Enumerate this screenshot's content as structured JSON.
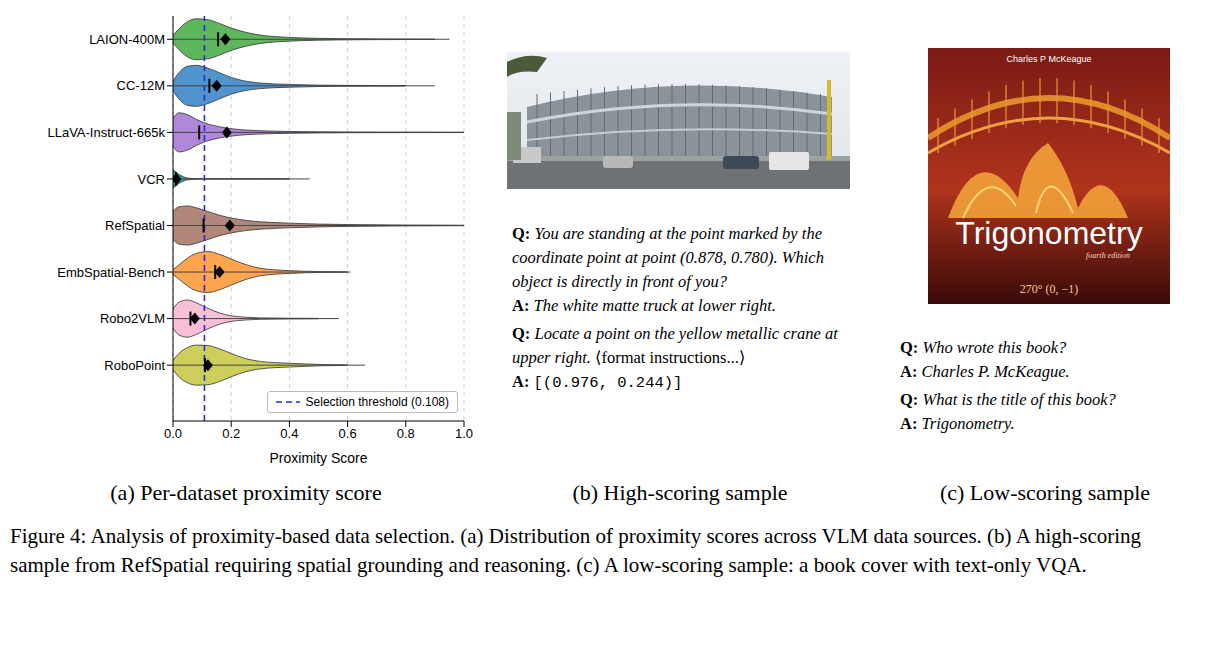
{
  "chart_data": {
    "type": "violin",
    "xlabel": "Proximity Score",
    "xlim": [
      0,
      1
    ],
    "xticks": [
      {
        "value": 0,
        "label": "0.0"
      },
      {
        "value": 0.2,
        "label": "0.2"
      },
      {
        "value": 0.4,
        "label": "0.4"
      },
      {
        "value": 0.6,
        "label": "0.6"
      },
      {
        "value": 0.8,
        "label": "0.8"
      },
      {
        "value": 1,
        "label": "1.0"
      }
    ],
    "grid": true,
    "legend": "lower right",
    "threshold": {
      "value": 0.108,
      "label": "Selection threshold (0.108)",
      "color": "#2a2ad6",
      "line_style": "dashed"
    },
    "density_x": [
      0,
      0.02,
      0.05,
      0.08,
      0.12,
      0.16,
      0.2,
      0.25,
      0.3,
      0.4,
      0.5,
      0.6,
      0.7,
      0.8,
      0.9,
      1.0
    ],
    "series": [
      {
        "name": "LAION-400M",
        "color": "#4daf4a",
        "median": 0.155,
        "mean": 0.18,
        "min": 0,
        "max": 0.95,
        "density": [
          0.08,
          0.22,
          0.38,
          0.44,
          0.42,
          0.34,
          0.24,
          0.15,
          0.09,
          0.04,
          0.02,
          0.012,
          0.008,
          0.005,
          0.003,
          null
        ]
      },
      {
        "name": "CC-12M",
        "color": "#3d88c8",
        "median": 0.125,
        "mean": 0.15,
        "min": 0,
        "max": 0.9,
        "density": [
          0.1,
          0.28,
          0.42,
          0.44,
          0.38,
          0.28,
          0.18,
          0.1,
          0.06,
          0.03,
          0.015,
          0.01,
          0.006,
          0.004,
          null,
          null
        ]
      },
      {
        "name": "LLaVA-Instruct-665k",
        "color": "#a77bd6",
        "median": 0.09,
        "mean": 0.185,
        "min": 0,
        "max": 1.0,
        "density": [
          0.3,
          0.42,
          0.38,
          0.28,
          0.18,
          0.12,
          0.08,
          0.05,
          0.035,
          0.02,
          0.012,
          0.008,
          0.006,
          0.005,
          0.004,
          0.003
        ]
      },
      {
        "name": "VCR",
        "color": "#1a9a96",
        "median": 0.01,
        "mean": 0.012,
        "min": 0,
        "max": 0.47,
        "density": [
          0.2,
          0.1,
          0.02,
          0.006,
          0.003,
          0.002,
          0.002,
          0.002,
          0.002,
          0.001,
          null,
          null,
          null,
          null,
          null,
          null
        ]
      },
      {
        "name": "RefSpatial",
        "color": "#a97a6a",
        "median": 0.105,
        "mean": 0.195,
        "min": 0,
        "max": 1.0,
        "density": [
          0.3,
          0.4,
          0.42,
          0.38,
          0.3,
          0.22,
          0.16,
          0.11,
          0.08,
          0.05,
          0.03,
          0.02,
          0.015,
          0.01,
          0.008,
          0.005
        ]
      },
      {
        "name": "EmbSpatial-Bench",
        "color": "#ff9a3c",
        "median": 0.145,
        "mean": 0.16,
        "min": 0,
        "max": 0.61,
        "density": [
          0.05,
          0.15,
          0.3,
          0.4,
          0.44,
          0.38,
          0.28,
          0.16,
          0.08,
          0.03,
          0.01,
          0.003,
          null,
          null,
          null,
          null
        ]
      },
      {
        "name": "Robo2VLM",
        "color": "#f7b8d4",
        "median": 0.06,
        "mean": 0.075,
        "min": 0,
        "max": 0.57,
        "density": [
          0.2,
          0.35,
          0.4,
          0.34,
          0.22,
          0.12,
          0.06,
          0.03,
          0.015,
          0.008,
          0.004,
          null,
          null,
          null,
          null,
          null
        ]
      },
      {
        "name": "RoboPoint",
        "color": "#c9c948",
        "median": 0.11,
        "mean": 0.12,
        "min": 0,
        "max": 0.66,
        "density": [
          0.1,
          0.25,
          0.38,
          0.43,
          0.42,
          0.35,
          0.25,
          0.14,
          0.08,
          0.04,
          0.015,
          0.005,
          null,
          null,
          null,
          null
        ]
      }
    ]
  },
  "panel_captions": [
    "(a) Per-dataset proximity score",
    "(b) High-scoring sample",
    "(c) Low-scoring sample"
  ],
  "qa_prefixes": {
    "q": "Q:",
    "a": "A:"
  },
  "high_sample": {
    "qa": [
      {
        "q": "You are standing at the point marked by the coordinate point at point (0.878, 0.780). Which object is directly in front of you?",
        "a": "The white matte truck at lower right."
      },
      {
        "q": "Locate a point on the yellow metallic crane at upper right.",
        "q_extra": "⟨format instructions...⟩",
        "a_code": "[(0.976, 0.244)]"
      }
    ]
  },
  "low_sample": {
    "cover": {
      "author": "Charles P McKeague",
      "title": "Trigonometry",
      "edition": "fourth edition",
      "corner": "270°   (0, −1)"
    },
    "qa": [
      {
        "q": "Who wrote this book?",
        "a": "Charles P. McKeague."
      },
      {
        "q": "What is the title of this book?",
        "a": "Trigonometry."
      }
    ]
  },
  "caption": "Figure 4: Analysis of proximity-based data selection. (a) Distribution of proximity scores across VLM data sources. (b) A high-scoring sample from RefSpatial requiring spatial grounding and reasoning. (c) A low-scoring sample: a book cover with text-only VQA."
}
